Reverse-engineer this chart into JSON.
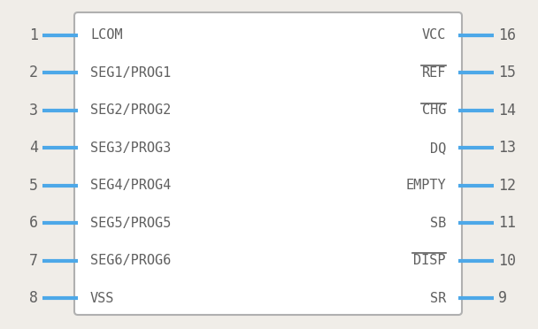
{
  "bg_color": "#f0ede8",
  "box_facecolor": "#ffffff",
  "box_edgecolor": "#b0b0b0",
  "pin_color": "#4da8e8",
  "text_color": "#606060",
  "num_color": "#606060",
  "left_pins": [
    {
      "num": 1,
      "label": "LCOM",
      "overline": false
    },
    {
      "num": 2,
      "label": "SEG1/PROG1",
      "overline": false
    },
    {
      "num": 3,
      "label": "SEG2/PROG2",
      "overline": false
    },
    {
      "num": 4,
      "label": "SEG3/PROG3",
      "overline": false
    },
    {
      "num": 5,
      "label": "SEG4/PROG4",
      "overline": false
    },
    {
      "num": 6,
      "label": "SEG5/PROG5",
      "overline": false
    },
    {
      "num": 7,
      "label": "SEG6/PROG6",
      "overline": false
    },
    {
      "num": 8,
      "label": "VSS",
      "overline": false
    }
  ],
  "right_pins": [
    {
      "num": 16,
      "label": "VCC",
      "overline": false
    },
    {
      "num": 15,
      "label": "REF",
      "overline": true
    },
    {
      "num": 14,
      "label": "CHG",
      "overline": true
    },
    {
      "num": 13,
      "label": "DQ",
      "overline": false
    },
    {
      "num": 12,
      "label": "EMPTY",
      "overline": false
    },
    {
      "num": 11,
      "label": "SB",
      "overline": false
    },
    {
      "num": 10,
      "label": "DISP",
      "overline": true
    },
    {
      "num": 9,
      "label": "SR",
      "overline": false
    }
  ],
  "fig_w": 6.08,
  "fig_h": 3.72,
  "dpi": 100
}
